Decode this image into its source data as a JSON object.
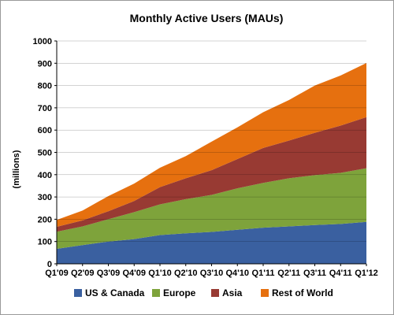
{
  "chart_data": {
    "type": "area",
    "stacked": true,
    "title": "Monthly Active Users (MAUs)",
    "xlabel": "",
    "ylabel": "(millions)",
    "ylim": [
      0,
      1000
    ],
    "yticks": [
      0,
      100,
      200,
      300,
      400,
      500,
      600,
      700,
      800,
      900,
      1000
    ],
    "categories": [
      "Q1'09",
      "Q2'09",
      "Q3'09",
      "Q4'09",
      "Q1'10",
      "Q2'10",
      "Q3'10",
      "Q4'10",
      "Q1'11",
      "Q2'11",
      "Q3'11",
      "Q4'11",
      "Q1'12"
    ],
    "grid": true,
    "legend_position": "bottom",
    "series": [
      {
        "name": "US & Canada",
        "color": "#3a60a0",
        "values": [
          67,
          84,
          100,
          111,
          129,
          137,
          143,
          153,
          162,
          168,
          174,
          179,
          188
        ]
      },
      {
        "name": "Europe",
        "color": "#7ea33b",
        "values": [
          77,
          84,
          100,
          121,
          138,
          153,
          166,
          186,
          201,
          216,
          224,
          229,
          241
        ]
      },
      {
        "name": "Asia",
        "color": "#983a33",
        "values": [
          22,
          27,
          36,
          50,
          77,
          94,
          111,
          131,
          157,
          169,
          190,
          212,
          229
        ]
      },
      {
        "name": "Rest of World",
        "color": "#e6700f",
        "values": [
          31,
          44,
          68,
          78,
          87,
          99,
          128,
          142,
          160,
          182,
          212,
          225,
          243
        ]
      }
    ]
  }
}
